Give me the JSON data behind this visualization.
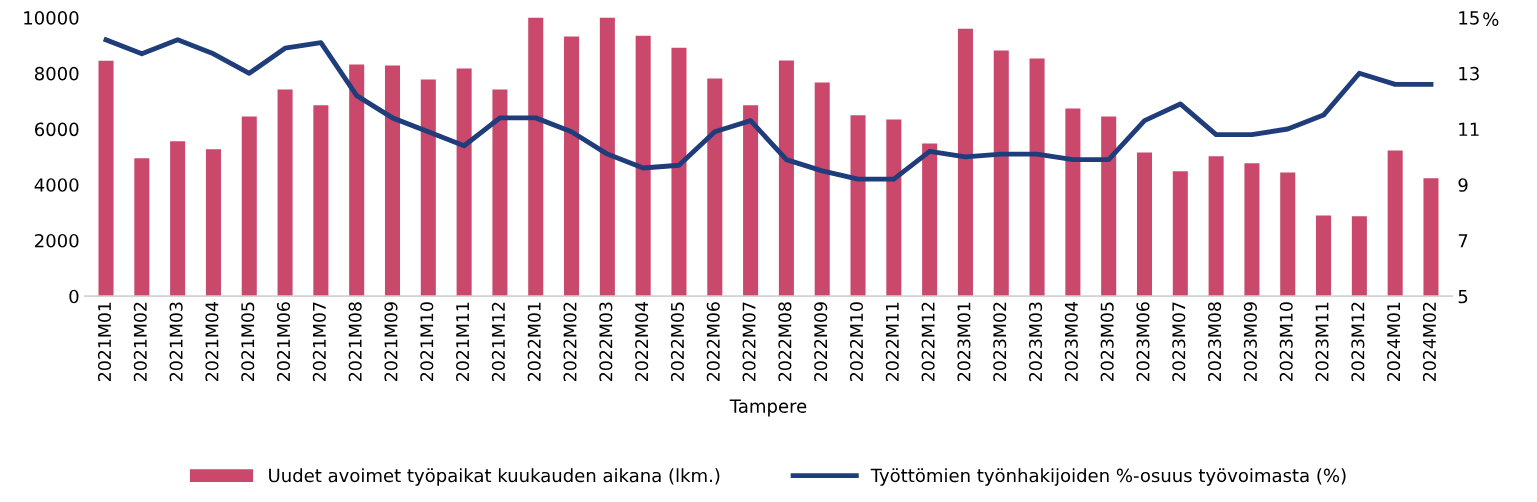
{
  "chart_data": {
    "type": "bar",
    "xlabel": "Tampere",
    "y2label": "%",
    "categories": [
      "2021M01",
      "2021M02",
      "2021M03",
      "2021M04",
      "2021M05",
      "2021M06",
      "2021M07",
      "2021M08",
      "2021M09",
      "2021M10",
      "2021M11",
      "2021M12",
      "2022M01",
      "2022M02",
      "2022M03",
      "2022M04",
      "2022M05",
      "2022M06",
      "2022M07",
      "2022M08",
      "2022M09",
      "2022M10",
      "2022M11",
      "2022M12",
      "2023M01",
      "2023M02",
      "2023M03",
      "2023M04",
      "2023M05",
      "2023M06",
      "2023M07",
      "2023M08",
      "2023M09",
      "2023M10",
      "2023M11",
      "2023M12",
      "2024M01",
      "2024M02"
    ],
    "series": [
      {
        "name": "Uudet avoimet työpaikat kuukauden aikana (lkm.)",
        "color": "#c9486c",
        "values": [
          8450,
          4950,
          5560,
          5270,
          6450,
          7420,
          6850,
          8320,
          8280,
          7780,
          8170,
          7420,
          10000,
          9320,
          10000,
          9350,
          8920,
          7810,
          6850,
          8460,
          7670,
          6490,
          6340,
          5480,
          9600,
          8820,
          8530,
          6740,
          6450,
          5160,
          4480,
          5020,
          4770,
          4440,
          2900,
          2870,
          5230,
          4230
        ]
      },
      {
        "name": "Työttömien työnhakijoiden %-osuus työvoimasta (%)",
        "type": "line",
        "axis": "y2",
        "color": "#1f3d7a",
        "values": [
          14.2,
          13.7,
          14.2,
          13.7,
          13.0,
          13.9,
          14.1,
          12.2,
          11.4,
          10.9,
          10.4,
          11.4,
          11.4,
          10.9,
          10.1,
          9.6,
          9.7,
          10.9,
          11.3,
          9.9,
          9.5,
          9.2,
          9.2,
          10.2,
          10.0,
          10.1,
          10.1,
          9.9,
          9.9,
          11.3,
          11.9,
          10.8,
          10.8,
          11.0,
          11.5,
          13.0,
          12.6,
          12.6
        ]
      }
    ],
    "ylim": [
      0,
      10000
    ],
    "yticks": [
      0,
      2000,
      4000,
      6000,
      8000,
      10000
    ],
    "y2lim": [
      5,
      15
    ],
    "y2ticks": [
      5,
      7,
      9,
      11,
      13,
      15
    ],
    "grid": false,
    "legend": "bottom",
    "marker": "none",
    "line_style": "solid"
  }
}
